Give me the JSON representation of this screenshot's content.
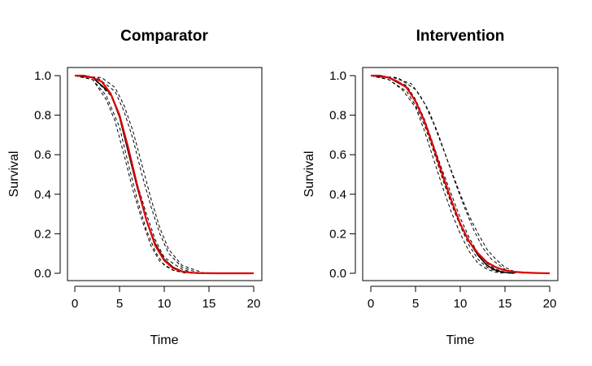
{
  "chart_data": [
    {
      "type": "line",
      "title": "Comparator",
      "xlabel": "Time",
      "ylabel": "Survival",
      "xlim": [
        0,
        20
      ],
      "ylim": [
        0,
        1
      ],
      "xticks": [
        "0",
        "5",
        "10",
        "15",
        "20"
      ],
      "yticks": [
        "0.0",
        "0.2",
        "0.4",
        "0.6",
        "0.8",
        "1.0"
      ],
      "grid": false,
      "legend": "none",
      "series": [
        {
          "style": "dashed",
          "color": "#000000",
          "role": "simulated",
          "x": [
            0,
            2,
            4,
            5,
            6,
            7,
            8,
            9,
            10,
            12,
            13.5
          ],
          "y": [
            1.0,
            0.99,
            0.9,
            0.8,
            0.63,
            0.45,
            0.3,
            0.17,
            0.08,
            0.02,
            0.0
          ]
        },
        {
          "style": "dashed",
          "color": "#000000",
          "role": "simulated",
          "x": [
            0,
            2,
            3.5,
            5,
            6,
            7,
            8,
            9,
            10,
            11,
            12.5
          ],
          "y": [
            1.0,
            0.98,
            0.9,
            0.74,
            0.55,
            0.37,
            0.22,
            0.11,
            0.04,
            0.015,
            0.0
          ]
        },
        {
          "style": "dashed",
          "color": "#000000",
          "role": "simulated",
          "x": [
            0,
            2.5,
            4.5,
            5.5,
            6.5,
            7.5,
            8.5,
            9.5,
            10.5,
            12,
            14
          ],
          "y": [
            1.0,
            0.99,
            0.92,
            0.82,
            0.68,
            0.5,
            0.34,
            0.2,
            0.1,
            0.03,
            0.0
          ]
        },
        {
          "style": "dashed",
          "color": "#000000",
          "role": "simulated",
          "x": [
            0,
            2,
            3.5,
            4.5,
            5.5,
            6.5,
            7.5,
            8.5,
            9.5,
            11,
            12.5
          ],
          "y": [
            1.0,
            0.98,
            0.88,
            0.77,
            0.6,
            0.42,
            0.27,
            0.14,
            0.06,
            0.015,
            0.0
          ]
        },
        {
          "style": "dashed",
          "color": "#000000",
          "role": "simulated",
          "x": [
            0,
            3,
            4.5,
            5.5,
            6.5,
            7.5,
            8.5,
            9.5,
            10.5,
            12,
            14.5
          ],
          "y": [
            1.0,
            0.99,
            0.94,
            0.85,
            0.72,
            0.55,
            0.38,
            0.23,
            0.12,
            0.04,
            0.0
          ]
        },
        {
          "style": "solid",
          "color": "#000000",
          "role": "observed",
          "x": [
            0,
            2,
            4,
            5,
            6,
            7,
            8,
            9,
            10,
            11,
            12,
            13,
            14
          ],
          "y": [
            1.0,
            0.99,
            0.91,
            0.79,
            0.61,
            0.43,
            0.27,
            0.15,
            0.07,
            0.03,
            0.01,
            0.003,
            0.0
          ]
        },
        {
          "style": "solid",
          "color": "#e00000",
          "role": "fitted",
          "x": [
            0,
            1,
            2,
            3,
            4,
            5,
            6,
            7,
            8,
            9,
            10,
            11,
            12,
            13,
            14,
            16,
            20
          ],
          "y": [
            1.0,
            1.0,
            0.99,
            0.97,
            0.91,
            0.8,
            0.63,
            0.44,
            0.27,
            0.14,
            0.065,
            0.025,
            0.009,
            0.003,
            0.001,
            0.0,
            0.0
          ]
        }
      ]
    },
    {
      "type": "line",
      "title": "Intervention",
      "xlabel": "Time",
      "ylabel": "Survival",
      "xlim": [
        0,
        20
      ],
      "ylim": [
        0,
        1
      ],
      "xticks": [
        "0",
        "5",
        "10",
        "15",
        "20"
      ],
      "yticks": [
        "0.0",
        "0.2",
        "0.4",
        "0.6",
        "0.8",
        "1.0"
      ],
      "grid": false,
      "legend": "none",
      "series": [
        {
          "style": "dashed",
          "color": "#000000",
          "role": "simulated",
          "x": [
            0,
            2,
            4,
            5,
            6,
            7,
            8,
            9,
            10,
            11,
            12,
            13,
            14,
            15,
            16.5
          ],
          "y": [
            1.0,
            0.99,
            0.95,
            0.88,
            0.78,
            0.65,
            0.52,
            0.4,
            0.28,
            0.18,
            0.1,
            0.05,
            0.02,
            0.005,
            0.0
          ]
        },
        {
          "style": "dashed",
          "color": "#000000",
          "role": "simulated",
          "x": [
            0,
            2,
            3.5,
            5,
            6,
            7,
            8,
            9,
            10,
            11,
            12,
            13,
            14,
            15
          ],
          "y": [
            1.0,
            0.98,
            0.93,
            0.84,
            0.72,
            0.58,
            0.44,
            0.31,
            0.2,
            0.11,
            0.05,
            0.02,
            0.005,
            0.0
          ]
        },
        {
          "style": "dashed",
          "color": "#000000",
          "role": "simulated",
          "x": [
            0,
            2.5,
            4.5,
            5.5,
            6.5,
            7.5,
            8.5,
            9.5,
            10.5,
            11.5,
            12.5,
            13.5,
            15,
            16
          ],
          "y": [
            1.0,
            0.99,
            0.96,
            0.9,
            0.82,
            0.71,
            0.58,
            0.45,
            0.33,
            0.22,
            0.13,
            0.07,
            0.02,
            0.0
          ]
        },
        {
          "style": "dashed",
          "color": "#000000",
          "role": "simulated",
          "x": [
            0,
            2,
            4,
            5,
            6,
            7,
            8,
            9,
            10,
            11,
            12,
            13,
            14,
            15.5
          ],
          "y": [
            1.0,
            0.98,
            0.92,
            0.85,
            0.75,
            0.62,
            0.48,
            0.35,
            0.24,
            0.14,
            0.07,
            0.03,
            0.01,
            0.0
          ]
        },
        {
          "style": "dashed",
          "color": "#000000",
          "role": "simulated",
          "x": [
            0,
            3,
            5,
            6,
            7,
            8,
            9,
            10,
            11,
            12,
            13,
            14,
            15,
            16,
            17
          ],
          "y": [
            1.0,
            0.99,
            0.93,
            0.86,
            0.76,
            0.64,
            0.52,
            0.4,
            0.29,
            0.2,
            0.12,
            0.07,
            0.03,
            0.01,
            0.0
          ]
        },
        {
          "style": "solid",
          "color": "#000000",
          "role": "observed",
          "x": [
            0,
            2,
            4,
            5,
            6,
            7,
            8,
            9,
            10,
            11,
            12,
            13,
            14,
            15,
            16
          ],
          "y": [
            1.0,
            0.99,
            0.94,
            0.87,
            0.77,
            0.64,
            0.5,
            0.37,
            0.25,
            0.16,
            0.09,
            0.04,
            0.015,
            0.004,
            0.0
          ]
        },
        {
          "style": "solid",
          "color": "#e00000",
          "role": "fitted",
          "x": [
            0,
            1,
            2,
            3,
            4,
            5,
            6,
            7,
            8,
            9,
            10,
            11,
            12,
            13,
            14,
            15,
            16,
            17,
            18,
            19,
            20
          ],
          "y": [
            1.0,
            1.0,
            0.99,
            0.97,
            0.94,
            0.87,
            0.77,
            0.64,
            0.5,
            0.37,
            0.25,
            0.16,
            0.1,
            0.055,
            0.03,
            0.015,
            0.008,
            0.004,
            0.002,
            0.001,
            0.0
          ]
        }
      ]
    }
  ]
}
